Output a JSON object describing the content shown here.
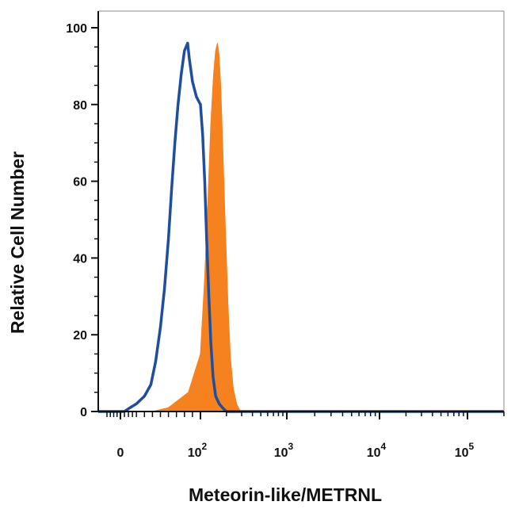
{
  "chart_data": {
    "type": "area",
    "title": "",
    "xlabel": "Meteorin-like/METRNL",
    "ylabel": "Relative Cell Number",
    "x_scale": "biexponential",
    "xlim": [
      -20,
      200000
    ],
    "ylim": [
      0,
      100
    ],
    "grid": false,
    "legend": "none",
    "y_ticks": [
      {
        "value": 0,
        "label": "0"
      },
      {
        "value": 20,
        "label": "20"
      },
      {
        "value": 40,
        "label": "40"
      },
      {
        "value": 60,
        "label": "60"
      },
      {
        "value": 80,
        "label": "80"
      },
      {
        "value": 100,
        "label": "100"
      }
    ],
    "x_ticks": [
      {
        "value": 0,
        "base": "0",
        "exp": ""
      },
      {
        "value": 100,
        "base": "10",
        "exp": "2"
      },
      {
        "value": 1000,
        "base": "10",
        "exp": "3"
      },
      {
        "value": 10000,
        "base": "10",
        "exp": "4"
      },
      {
        "value": 100000,
        "base": "10",
        "exp": "5"
      }
    ],
    "series": [
      {
        "style": "filled",
        "color": "#F5821F",
        "points": [
          [
            40,
            0
          ],
          [
            60,
            1
          ],
          [
            85,
            5
          ],
          [
            100,
            15
          ],
          [
            112,
            35
          ],
          [
            122,
            55
          ],
          [
            132,
            75
          ],
          [
            142,
            88
          ],
          [
            150,
            94
          ],
          [
            157,
            96
          ],
          [
            164,
            93
          ],
          [
            172,
            84
          ],
          [
            182,
            68
          ],
          [
            194,
            48
          ],
          [
            208,
            28
          ],
          [
            222,
            14
          ],
          [
            240,
            6
          ],
          [
            262,
            2
          ],
          [
            290,
            0
          ]
        ]
      },
      {
        "style": "outline",
        "color": "#1F4E9C",
        "points": [
          [
            5,
            0
          ],
          [
            12,
            1
          ],
          [
            20,
            2
          ],
          [
            30,
            4
          ],
          [
            38,
            7
          ],
          [
            44,
            13
          ],
          [
            50,
            22
          ],
          [
            55,
            32
          ],
          [
            60,
            45
          ],
          [
            64,
            58
          ],
          [
            68,
            70
          ],
          [
            72,
            80
          ],
          [
            76,
            88
          ],
          [
            80,
            94
          ],
          [
            84,
            96
          ],
          [
            86,
            92
          ],
          [
            90,
            86
          ],
          [
            95,
            82
          ],
          [
            100,
            80
          ],
          [
            106,
            72
          ],
          [
            112,
            60
          ],
          [
            118,
            45
          ],
          [
            125,
            30
          ],
          [
            132,
            18
          ],
          [
            140,
            9
          ],
          [
            150,
            4
          ],
          [
            165,
            2
          ],
          [
            180,
            1
          ],
          [
            200,
            0
          ]
        ]
      }
    ]
  }
}
